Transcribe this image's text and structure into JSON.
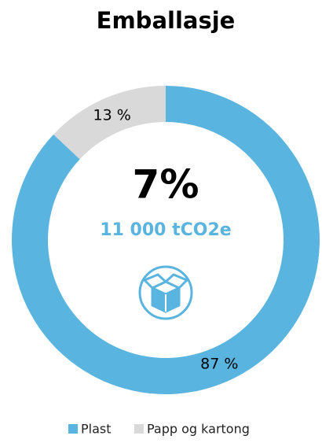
{
  "chart_data": {
    "type": "donut",
    "title": "Emballasje",
    "categories": [
      "Plast",
      "Papp og kartong"
    ],
    "values": [
      87,
      13
    ],
    "value_labels": [
      "87 %",
      "13 %"
    ],
    "colors": [
      "#5ab4e0",
      "#d9d9d9"
    ],
    "annotations": [
      "7%",
      "11 000 tCO2e"
    ]
  }
}
